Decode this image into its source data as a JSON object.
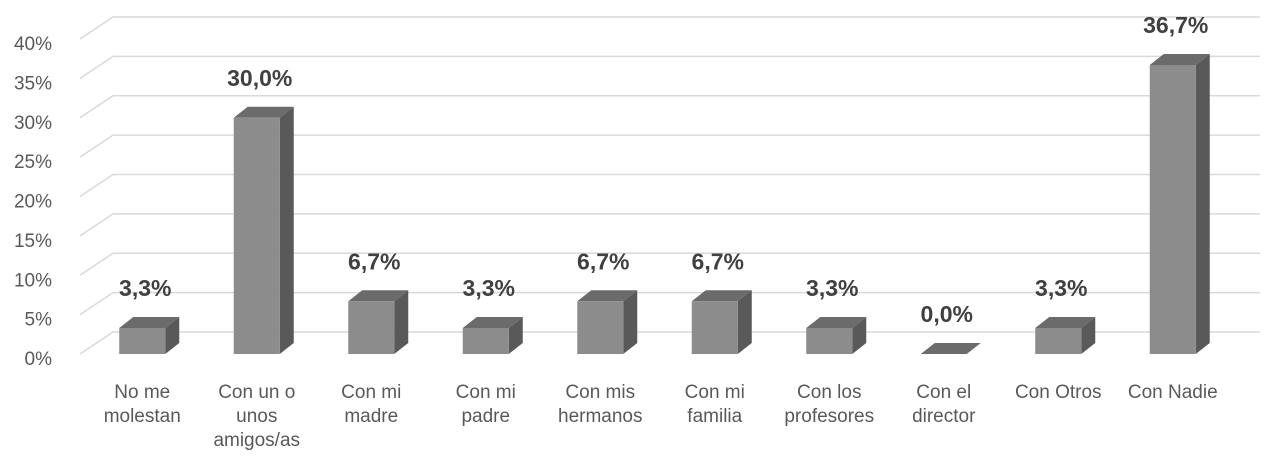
{
  "chart_data": {
    "type": "bar3d",
    "categories": [
      "No me\nmolestan",
      "Con un o\nunos\namigos/as",
      "Con mi\nmadre",
      "Con mi\npadre",
      "Con mis\nhermanos",
      "Con mi\nfamilia",
      "Con los\nprofesores",
      "Con el\ndirector",
      "Con Otros",
      "Con Nadie"
    ],
    "values": [
      3.3,
      30.0,
      6.7,
      3.3,
      6.7,
      6.7,
      3.3,
      0.0,
      3.3,
      36.7
    ],
    "value_labels": [
      "3,3%",
      "30,0%",
      "6,7%",
      "3,3%",
      "6,7%",
      "6,7%",
      "3,3%",
      "0,0%",
      "3,3%",
      "36,7%"
    ],
    "color": "#8c8c8c",
    "ylim": [
      0,
      40
    ],
    "yticks": [
      {
        "value": 0,
        "label": "0%"
      },
      {
        "value": 5,
        "label": "5%"
      },
      {
        "value": 10,
        "label": "10%"
      },
      {
        "value": 15,
        "label": "15%"
      },
      {
        "value": 20,
        "label": "20%"
      },
      {
        "value": 25,
        "label": "25%"
      },
      {
        "value": 30,
        "label": "30%"
      },
      {
        "value": 35,
        "label": "35%"
      },
      {
        "value": 40,
        "label": "40%"
      }
    ],
    "grid": true
  }
}
